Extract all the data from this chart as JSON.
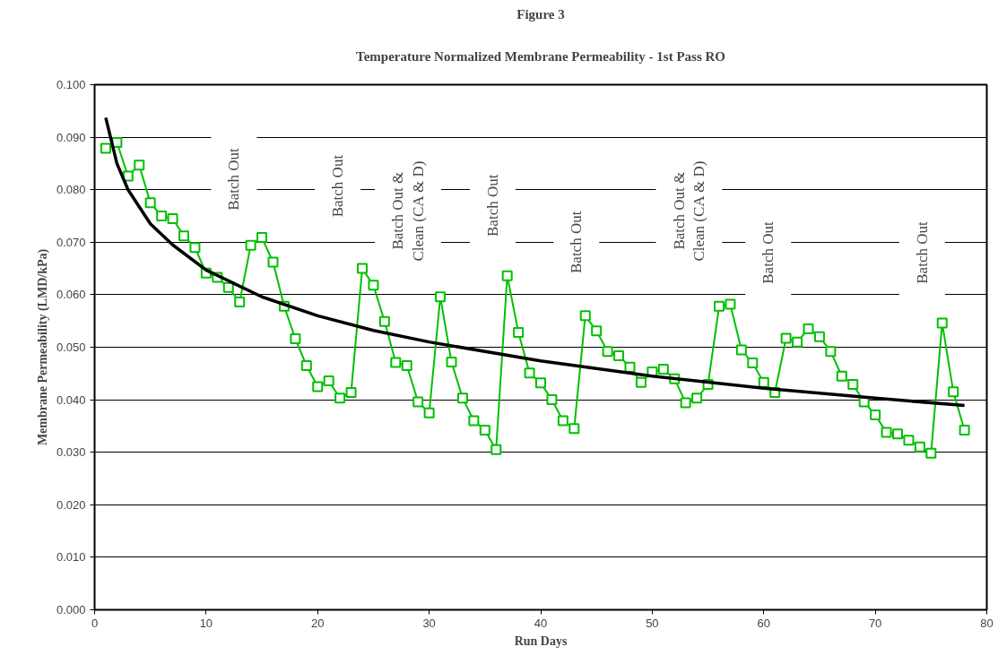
{
  "chart_data": {
    "type": "line",
    "title": "Figure 3",
    "subtitle": "Temperature Normalized Membrane Permeability - 1st Pass RO",
    "xlabel": "Run Days",
    "ylabel": "Membrane Permeability (LMD/kPa)",
    "xlim": [
      0,
      80
    ],
    "xticks": [
      0,
      10,
      20,
      30,
      40,
      50,
      60,
      70,
      80
    ],
    "ylim": [
      0,
      0.1
    ],
    "yticks": [
      {
        "value": 0,
        "label": "0.000"
      },
      {
        "value": 0.01,
        "label": "0.010"
      },
      {
        "value": 0.02,
        "label": "0.020"
      },
      {
        "value": 0.03,
        "label": "0.030"
      },
      {
        "value": 0.04,
        "label": "0.040"
      },
      {
        "value": 0.05,
        "label": "0.050"
      },
      {
        "value": 0.06,
        "label": "0.060"
      },
      {
        "value": 0.07,
        "label": "0.070"
      },
      {
        "value": 0.08,
        "label": "0.080"
      },
      {
        "value": 0.09,
        "label": "0.090"
      },
      {
        "value": 0.1,
        "label": "0.100"
      }
    ],
    "grid": "y",
    "series": [
      {
        "color": "#00c000",
        "marker": "square",
        "x": [
          1,
          2,
          3,
          4,
          5,
          6,
          7,
          8,
          9,
          10,
          11,
          12,
          13,
          14,
          15,
          16,
          17,
          18,
          19,
          20,
          21,
          22,
          23,
          24,
          25,
          26,
          27,
          28,
          29,
          30,
          31,
          32,
          33,
          34,
          35,
          36,
          37,
          38,
          39,
          40,
          41,
          42,
          43,
          44,
          45,
          46,
          47,
          48,
          49,
          50,
          51,
          52,
          53,
          54,
          55,
          56,
          57,
          58,
          59,
          60,
          61,
          62,
          63,
          64,
          65,
          66,
          67,
          68,
          69,
          70,
          71,
          72,
          73,
          74,
          75,
          76,
          77,
          78
        ],
        "values": [
          0.0879,
          0.089,
          0.0826,
          0.0847,
          0.0775,
          0.075,
          0.0745,
          0.0712,
          0.069,
          0.0641,
          0.0633,
          0.0614,
          0.0586,
          0.0694,
          0.0709,
          0.0662,
          0.0578,
          0.0516,
          0.0465,
          0.0425,
          0.0436,
          0.0403,
          0.0414,
          0.065,
          0.0618,
          0.0549,
          0.0471,
          0.0465,
          0.0396,
          0.0375,
          0.0596,
          0.0472,
          0.0403,
          0.036,
          0.0342,
          0.0305,
          0.0636,
          0.0528,
          0.0451,
          0.0432,
          0.04,
          0.036,
          0.0345,
          0.056,
          0.0531,
          0.0492,
          0.0484,
          0.0462,
          0.0433,
          0.0453,
          0.0458,
          0.044,
          0.0394,
          0.0403,
          0.0429,
          0.0578,
          0.0582,
          0.0495,
          0.047,
          0.0433,
          0.0414,
          0.0517,
          0.051,
          0.0535,
          0.052,
          0.0492,
          0.0445,
          0.0429,
          0.0396,
          0.0371,
          0.0338,
          0.0335,
          0.0323,
          0.031,
          0.0298,
          0.0546,
          0.0415,
          0.0342
        ]
      },
      {
        "color": "#000000",
        "marker": "none",
        "x": [
          1,
          2,
          3,
          5,
          7,
          10,
          15,
          20,
          25,
          30,
          40,
          50,
          60,
          70,
          78
        ],
        "values": [
          0.0937,
          0.085,
          0.08,
          0.0735,
          0.0695,
          0.0647,
          0.0596,
          0.056,
          0.0532,
          0.051,
          0.0474,
          0.0445,
          0.0422,
          0.0403,
          0.0389
        ]
      }
    ],
    "annotations": [
      "Batch Out",
      "Batch Out",
      "Batch Out &\nClean (CA & D)",
      "Batch Out",
      "Batch Out",
      "Batch Out &\nClean (CA & D)",
      "Batch Out",
      "Batch Out"
    ]
  }
}
